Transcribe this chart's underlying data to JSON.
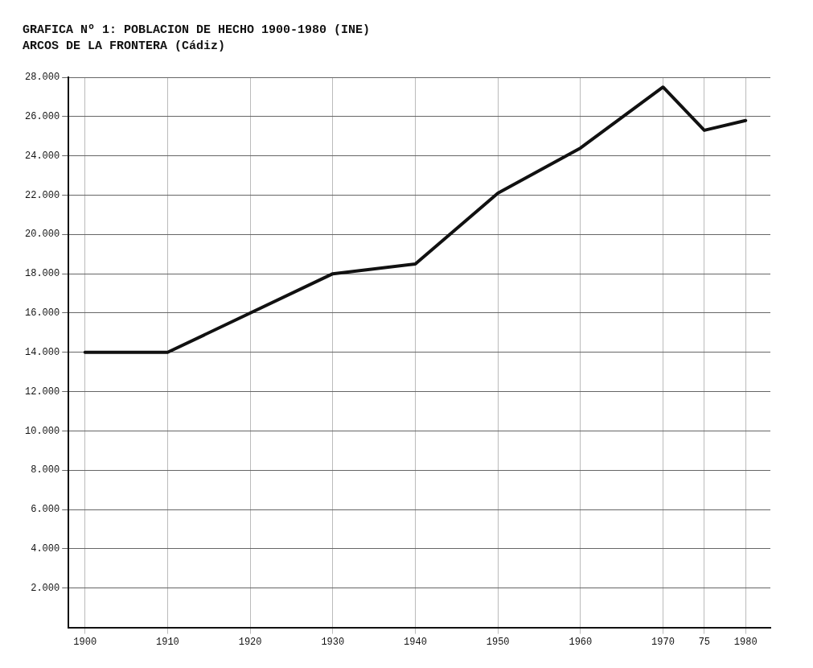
{
  "chart_data": {
    "type": "line",
    "title": "GRAFICA Nº 1: POBLACION DE HECHO 1900-1980 (INE)",
    "subtitle": "ARCOS DE LA FRONTERA (Cádiz)",
    "x": [
      1900,
      1910,
      1930,
      1940,
      1950,
      1960,
      1970,
      1975,
      1980
    ],
    "series": [
      {
        "color": "#111111",
        "values": [
          14000,
          14000,
          18000,
          18500,
          22100,
          24400,
          27500,
          25300,
          25800
        ]
      }
    ],
    "xlim": [
      1898,
      1983
    ],
    "xticks": [
      1900,
      1910,
      1920,
      1930,
      1940,
      1950,
      1960,
      1970,
      {
        "value": 1975,
        "label": "75"
      },
      1980
    ],
    "ylim": [
      0,
      28000
    ],
    "yticks": [
      {
        "value": 2000,
        "label": "2.000"
      },
      {
        "value": 4000,
        "label": "4.000"
      },
      {
        "value": 6000,
        "label": "6.000"
      },
      {
        "value": 8000,
        "label": "8.000"
      },
      {
        "value": 10000,
        "label": "10.000"
      },
      {
        "value": 12000,
        "label": "12.000"
      },
      {
        "value": 14000,
        "label": "14.000"
      },
      {
        "value": 16000,
        "label": "16.000"
      },
      {
        "value": 18000,
        "label": "18.000"
      },
      {
        "value": 20000,
        "label": "20.000"
      },
      {
        "value": 22000,
        "label": "22.000"
      },
      {
        "value": 24000,
        "label": "24.000"
      },
      {
        "value": 26000,
        "label": "26.000"
      },
      {
        "value": 28000,
        "label": "28.000"
      }
    ],
    "grid": true,
    "legend": false,
    "marker": "none",
    "line_style": "solid"
  }
}
